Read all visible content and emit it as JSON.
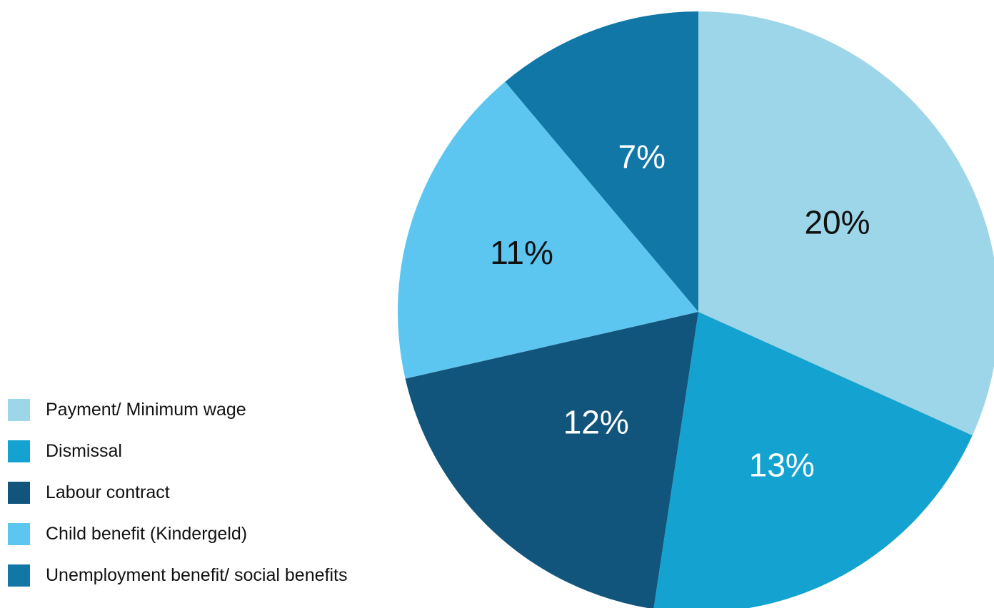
{
  "chart_data": {
    "type": "pie",
    "title": "",
    "legend_position": "bottom-left",
    "slices": [
      {
        "label": "Payment/ Minimum wage",
        "value": 20,
        "display": "20%",
        "color": "#9dd6e8",
        "label_color": "#111111"
      },
      {
        "label": "Dismissal",
        "value": 13,
        "display": "13%",
        "color": "#14a2d0",
        "label_color": "#ffffff"
      },
      {
        "label": "Labour contract",
        "value": 12,
        "display": "12%",
        "color": "#12557c",
        "label_color": "#ffffff"
      },
      {
        "label": "Child benefit (Kindergeld)",
        "value": 11,
        "display": "11%",
        "color": "#5cc6f1",
        "label_color": "#111111"
      },
      {
        "label": "Unemployment benefit/ social benefits",
        "value": 7,
        "display": "7%",
        "color": "#1077a6",
        "label_color": "#ffffff"
      }
    ]
  }
}
